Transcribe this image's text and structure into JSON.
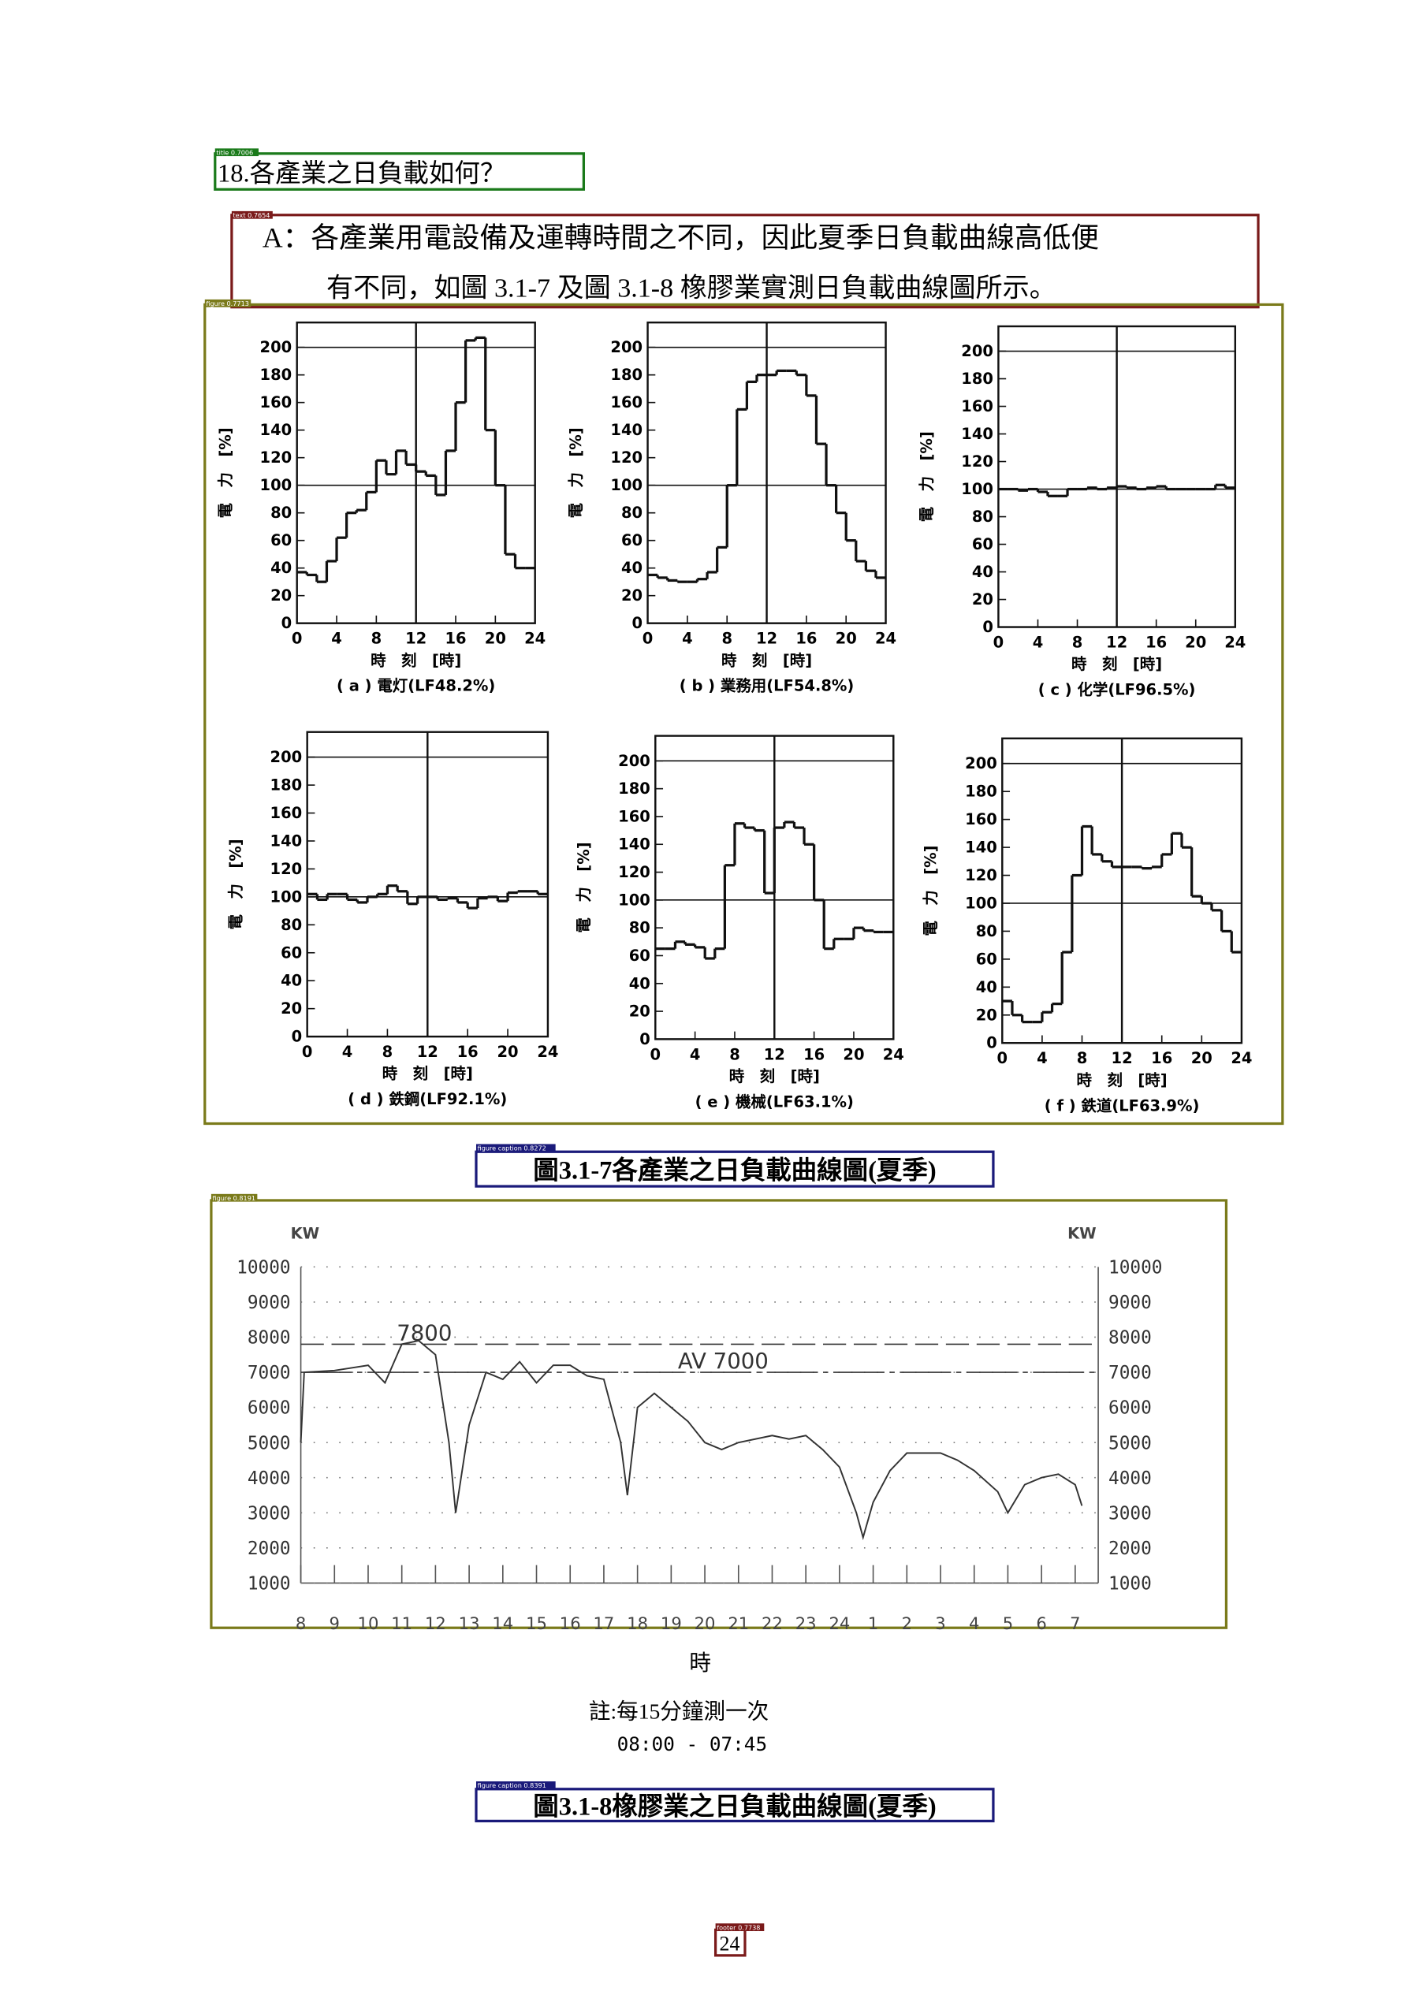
{
  "title": "18.各產業之日負載如何？",
  "answer": {
    "line1": "A：各產業用電設備及運轉時間之不同，因此夏季日負載曲線高低便",
    "line2": "有不同，如圖 3.1-7 及圖 3.1-8 橡膠業實測日負載曲線圖所示。"
  },
  "figure1": {
    "caption": "圖3.1-7各產業之日負載曲線圖(夏季)",
    "xlabel": "時　刻　[時]",
    "ylabel": "電　力　[%]",
    "guides": {
      "y": [
        100,
        200
      ],
      "x": [
        12
      ]
    },
    "panels": [
      {
        "chart_data": {
          "type": "step",
          "caption": "( a )  電灯(LF48.2%)",
          "xlim": [
            0,
            24
          ],
          "ylim": [
            0,
            218
          ],
          "xticks": [
            0,
            4,
            8,
            12,
            16,
            20,
            24
          ],
          "yticks": [
            0,
            20,
            40,
            60,
            80,
            100,
            120,
            140,
            160,
            180,
            200
          ],
          "values": [
            37,
            35,
            30,
            45,
            62,
            80,
            82,
            95,
            118,
            108,
            125,
            115,
            110,
            107,
            93,
            125,
            160,
            205,
            207,
            140,
            100,
            50,
            40,
            40
          ]
        }
      },
      {
        "chart_data": {
          "type": "step",
          "caption": "( b )  業務用(LF54.8%)",
          "xlim": [
            0,
            24
          ],
          "ylim": [
            0,
            218
          ],
          "xticks": [
            0,
            4,
            8,
            12,
            16,
            20,
            24
          ],
          "yticks": [
            0,
            20,
            40,
            60,
            80,
            100,
            120,
            140,
            160,
            180,
            200
          ],
          "values": [
            35,
            33,
            31,
            30,
            30,
            32,
            37,
            55,
            100,
            155,
            175,
            180,
            180,
            183,
            183,
            180,
            165,
            130,
            100,
            80,
            60,
            45,
            38,
            33
          ]
        }
      },
      {
        "chart_data": {
          "type": "step",
          "caption": "( c )  化学(LF96.5%)",
          "xlim": [
            0,
            24
          ],
          "ylim": [
            0,
            218
          ],
          "xticks": [
            0,
            4,
            8,
            12,
            16,
            20,
            24
          ],
          "yticks": [
            0,
            20,
            40,
            60,
            80,
            100,
            120,
            140,
            160,
            180,
            200
          ],
          "values": [
            100,
            100,
            99,
            100,
            98,
            95,
            95,
            100,
            100,
            101,
            100,
            101,
            102,
            101,
            100,
            101,
            102,
            100,
            100,
            100,
            100,
            100,
            103,
            101
          ]
        }
      },
      {
        "chart_data": {
          "type": "step",
          "caption": "( d )  鉄鋼(LF92.1%)",
          "xlim": [
            0,
            24
          ],
          "ylim": [
            0,
            218
          ],
          "xticks": [
            0,
            4,
            8,
            12,
            16,
            20,
            24
          ],
          "yticks": [
            0,
            20,
            40,
            60,
            80,
            100,
            120,
            140,
            160,
            180,
            200
          ],
          "values": [
            102,
            98,
            102,
            102,
            98,
            96,
            100,
            102,
            108,
            104,
            95,
            100,
            100,
            98,
            99,
            96,
            92,
            99,
            100,
            97,
            103,
            104,
            104,
            102
          ]
        }
      },
      {
        "chart_data": {
          "type": "step",
          "caption": "( e )  機械(LF63.1%)",
          "xlim": [
            0,
            24
          ],
          "ylim": [
            0,
            218
          ],
          "xticks": [
            0,
            4,
            8,
            12,
            16,
            20,
            24
          ],
          "yticks": [
            0,
            20,
            40,
            60,
            80,
            100,
            120,
            140,
            160,
            180,
            200
          ],
          "values": [
            65,
            65,
            70,
            68,
            66,
            58,
            65,
            125,
            155,
            152,
            150,
            105,
            152,
            156,
            152,
            140,
            100,
            65,
            72,
            72,
            80,
            78,
            77,
            77
          ]
        }
      },
      {
        "chart_data": {
          "type": "step",
          "caption": "( f )  鉄道(LF63.9%)",
          "xlim": [
            0,
            24
          ],
          "ylim": [
            0,
            218
          ],
          "xticks": [
            0,
            4,
            8,
            12,
            16,
            20,
            24
          ],
          "yticks": [
            0,
            20,
            40,
            60,
            80,
            100,
            120,
            140,
            160,
            180,
            200
          ],
          "values": [
            30,
            20,
            15,
            15,
            22,
            28,
            65,
            120,
            155,
            135,
            130,
            126,
            126,
            126,
            125,
            126,
            135,
            150,
            140,
            105,
            100,
            95,
            80,
            65
          ]
        }
      }
    ]
  },
  "figure2": {
    "caption": "圖3.1-8橡膠業之日負載曲線圖(夏季)",
    "note": "註:每15分鐘測一次",
    "range": "08:00 - 07:45",
    "chart_data": {
      "type": "line",
      "unit_left": "KW",
      "unit_right": "KW",
      "xlabel": "時",
      "color": "#333333",
      "xlim": [
        8,
        31
      ],
      "ylim": [
        1000,
        10000
      ],
      "xticks": [
        8,
        9,
        10,
        11,
        12,
        13,
        14,
        15,
        16,
        17,
        18,
        19,
        20,
        21,
        22,
        23,
        24,
        {
          "value": 25,
          "label": "1"
        },
        {
          "value": 26,
          "label": "2"
        },
        {
          "value": 27,
          "label": "3"
        },
        {
          "value": 28,
          "label": "4"
        },
        {
          "value": 29,
          "label": "5"
        },
        {
          "value": 30,
          "label": "6"
        },
        {
          "value": 31,
          "label": "7"
        }
      ],
      "yticks": [
        1000,
        2000,
        3000,
        4000,
        5000,
        6000,
        7000,
        8000,
        9000,
        10000
      ],
      "annotations": [
        {
          "text": "7800",
          "value": 7800
        },
        {
          "text": "AV 7000",
          "value": 7000
        }
      ],
      "x": [
        8,
        8.1,
        9,
        10,
        10.5,
        11,
        11.5,
        12,
        12.4,
        12.6,
        13,
        13.5,
        14,
        14.5,
        15,
        15.5,
        16,
        16.5,
        17,
        17.5,
        17.7,
        18,
        18.5,
        19,
        19.5,
        20,
        20.5,
        21,
        22,
        22.5,
        23,
        23.5,
        24,
        24.5,
        24.7,
        25,
        25.5,
        26,
        27,
        27.5,
        28,
        28.7,
        29,
        29.5,
        30,
        30.5,
        31,
        31.2
      ],
      "values": [
        5000,
        7000,
        7050,
        7200,
        6700,
        7800,
        7900,
        7500,
        5000,
        3000,
        5500,
        7000,
        6800,
        7300,
        6700,
        7200,
        7200,
        6900,
        6800,
        5000,
        3500,
        6000,
        6400,
        6000,
        5600,
        5000,
        4800,
        5000,
        5200,
        5100,
        5200,
        4800,
        4300,
        3000,
        2300,
        3300,
        4200,
        4700,
        4700,
        4500,
        4200,
        3600,
        3000,
        3800,
        4000,
        4100,
        3800,
        3200
      ]
    }
  },
  "footer": "24",
  "detections": [
    "title 0.7006",
    "text 0.7654",
    "figure 0.7713",
    "figure caption 0.8272",
    "figure 0.8191",
    "figure caption 0.8391",
    "footer 0.7738"
  ]
}
